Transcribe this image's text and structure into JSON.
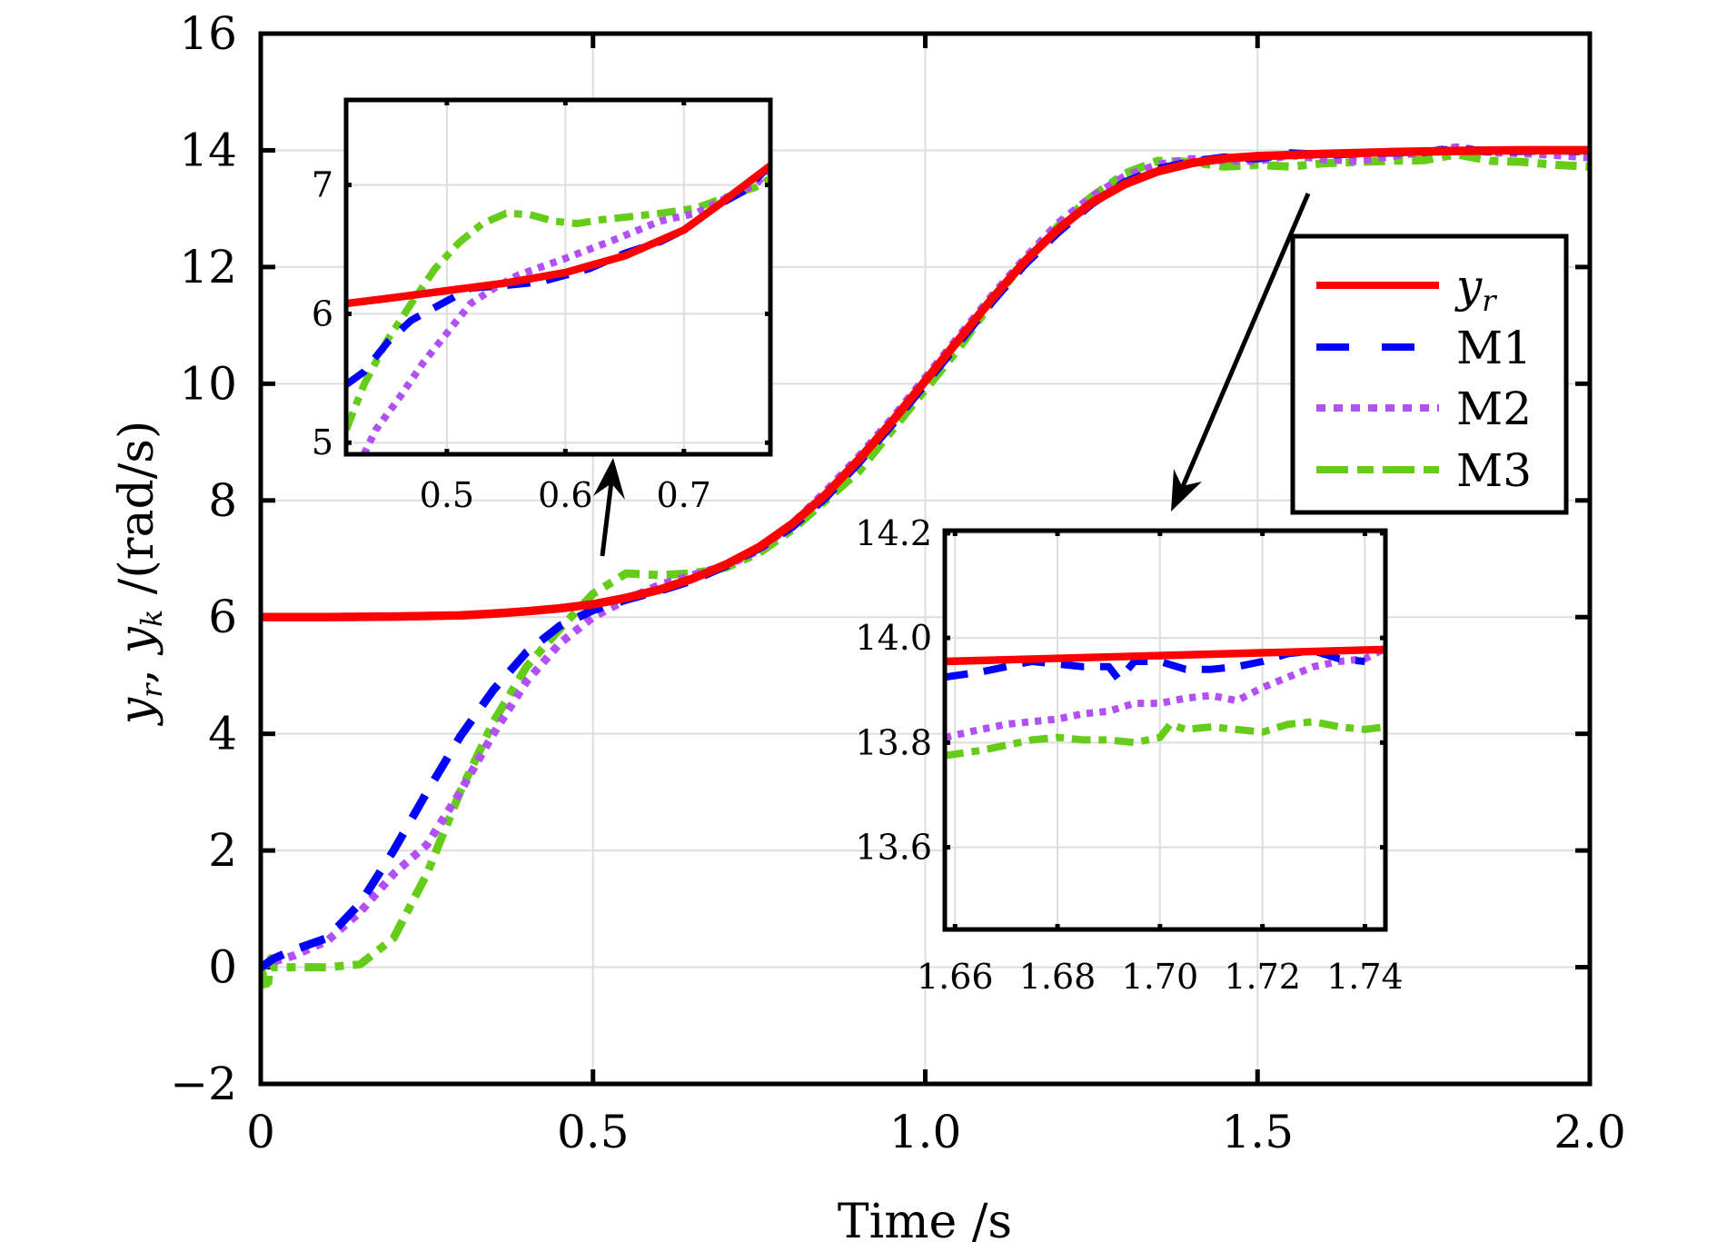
{
  "chart_data": {
    "type": "line",
    "title": "",
    "xlabel": "Time /s",
    "ylabel": "y_r, y_k /(rad/s)",
    "ylabel_parts": [
      "y",
      "r",
      ", ",
      "y",
      "k",
      " /(rad/s)"
    ],
    "xlim": [
      0,
      2.0
    ],
    "ylim": [
      -2,
      16
    ],
    "xticks": [
      0,
      0.5,
      1.0,
      1.5,
      2.0
    ],
    "xtick_labels": [
      "0",
      "0.5",
      "1.0",
      "1.5",
      "2.0"
    ],
    "yticks": [
      -2,
      0,
      2,
      4,
      6,
      8,
      10,
      12,
      14,
      16
    ],
    "ytick_labels": [
      "−2",
      "0",
      "2",
      "4",
      "6",
      "8",
      "10",
      "12",
      "14",
      "16"
    ],
    "grid": true,
    "legend": {
      "placement": "right-center",
      "entries": [
        {
          "label_main": "y",
          "label_sub": "r",
          "series": "yr"
        },
        {
          "label_main": "M1",
          "label_sub": "",
          "series": "M1"
        },
        {
          "label_main": "M2",
          "label_sub": "",
          "series": "M2"
        },
        {
          "label_main": "M3",
          "label_sub": "",
          "series": "M3"
        }
      ]
    },
    "series": [
      {
        "id": "yr",
        "name": "y_r",
        "color": "#ff0000",
        "style": "solid",
        "x": [
          0,
          0.1,
          0.2,
          0.3,
          0.35,
          0.4,
          0.45,
          0.5,
          0.55,
          0.6,
          0.65,
          0.7,
          0.75,
          0.8,
          0.85,
          0.9,
          0.95,
          1.0,
          1.05,
          1.1,
          1.15,
          1.2,
          1.25,
          1.3,
          1.35,
          1.4,
          1.45,
          1.5,
          1.6,
          1.7,
          1.8,
          1.9,
          2.0
        ],
        "values": [
          6.0,
          6.0,
          6.01,
          6.03,
          6.06,
          6.1,
          6.15,
          6.22,
          6.33,
          6.47,
          6.66,
          6.9,
          7.2,
          7.6,
          8.1,
          8.7,
          9.35,
          10.05,
          10.75,
          11.45,
          12.1,
          12.65,
          13.1,
          13.42,
          13.64,
          13.78,
          13.86,
          13.9,
          13.94,
          13.97,
          13.99,
          14.0,
          14.0
        ]
      },
      {
        "id": "M1",
        "name": "M1",
        "color": "#0000ff",
        "style": "dashed",
        "x": [
          0,
          0.02,
          0.05,
          0.1,
          0.15,
          0.2,
          0.25,
          0.3,
          0.35,
          0.4,
          0.45,
          0.5,
          0.55,
          0.6,
          0.65,
          0.7,
          0.75,
          0.8,
          0.85,
          0.9,
          0.95,
          1.0,
          1.05,
          1.1,
          1.15,
          1.2,
          1.25,
          1.3,
          1.35,
          1.4,
          1.45,
          1.5,
          1.55,
          1.6,
          1.65,
          1.7,
          1.75,
          1.8,
          1.85,
          1.9,
          1.95,
          2.0
        ],
        "values": [
          0.0,
          0.15,
          0.3,
          0.5,
          1.1,
          2.0,
          3.0,
          3.95,
          4.75,
          5.4,
          5.85,
          6.12,
          6.3,
          6.45,
          6.63,
          6.88,
          7.18,
          7.55,
          8.05,
          8.65,
          9.3,
          10.0,
          10.7,
          11.4,
          12.05,
          12.6,
          13.08,
          13.45,
          13.68,
          13.8,
          13.88,
          13.86,
          13.95,
          13.92,
          13.95,
          13.96,
          13.97,
          14.02,
          13.98,
          13.99,
          14.0,
          13.98
        ]
      },
      {
        "id": "M2",
        "name": "M2",
        "color": "#b050f5",
        "style": "dotted",
        "x": [
          0,
          0.02,
          0.05,
          0.1,
          0.15,
          0.2,
          0.25,
          0.3,
          0.35,
          0.4,
          0.45,
          0.5,
          0.55,
          0.6,
          0.65,
          0.7,
          0.75,
          0.8,
          0.85,
          0.9,
          0.95,
          1.0,
          1.05,
          1.1,
          1.15,
          1.2,
          1.25,
          1.3,
          1.35,
          1.4,
          1.45,
          1.5,
          1.55,
          1.6,
          1.65,
          1.7,
          1.75,
          1.8,
          1.85,
          1.9,
          1.95,
          2.0
        ],
        "values": [
          0.0,
          0.1,
          0.2,
          0.45,
          0.95,
          1.6,
          2.1,
          3.0,
          4.0,
          4.9,
          5.55,
          6.0,
          6.3,
          6.55,
          6.72,
          6.88,
          7.15,
          7.6,
          8.15,
          8.75,
          9.4,
          10.1,
          10.8,
          11.5,
          12.15,
          12.75,
          13.2,
          13.55,
          13.75,
          13.85,
          13.83,
          13.82,
          13.92,
          13.85,
          13.82,
          13.9,
          13.97,
          14.05,
          13.97,
          13.95,
          13.92,
          13.88
        ]
      },
      {
        "id": "M3",
        "name": "M3",
        "color": "#66cc1a",
        "style": "dashdot",
        "x": [
          0,
          0.01,
          0.015,
          0.02,
          0.05,
          0.1,
          0.15,
          0.2,
          0.25,
          0.3,
          0.35,
          0.4,
          0.45,
          0.5,
          0.55,
          0.6,
          0.65,
          0.7,
          0.75,
          0.8,
          0.85,
          0.9,
          0.95,
          1.0,
          1.05,
          1.1,
          1.15,
          1.2,
          1.25,
          1.3,
          1.35,
          1.4,
          1.45,
          1.5,
          1.55,
          1.6,
          1.65,
          1.7,
          1.75,
          1.8,
          1.85,
          1.9,
          1.95,
          2.0
        ],
        "values": [
          0.0,
          -0.4,
          0.15,
          0.0,
          0.0,
          0.0,
          0.05,
          0.5,
          1.6,
          3.0,
          4.2,
          5.15,
          5.8,
          6.4,
          6.75,
          6.72,
          6.75,
          6.85,
          7.1,
          7.5,
          8.0,
          8.5,
          9.2,
          9.9,
          10.6,
          11.4,
          12.1,
          12.7,
          13.2,
          13.6,
          13.82,
          13.8,
          13.72,
          13.75,
          13.72,
          13.78,
          13.8,
          13.82,
          13.83,
          13.93,
          13.82,
          13.8,
          13.75,
          13.72
        ]
      }
    ],
    "insets": [
      {
        "id": "inset-early",
        "xlim": [
          0.415,
          0.773
        ],
        "ylim": [
          4.91,
          7.66
        ],
        "xticks": [
          0.5,
          0.6,
          0.7
        ],
        "xtick_labels": [
          "0.5",
          "0.6",
          "0.7"
        ],
        "yticks": [
          5,
          6,
          7
        ],
        "ytick_labels": [
          "5",
          "6",
          "7"
        ],
        "series": [
          {
            "id": "yr",
            "x": [
              0.415,
              0.45,
              0.5,
              0.55,
              0.6,
              0.65,
              0.7,
              0.73,
              0.773
            ],
            "values": [
              6.08,
              6.12,
              6.18,
              6.24,
              6.32,
              6.45,
              6.65,
              6.85,
              7.15
            ]
          },
          {
            "id": "M1",
            "x": [
              0.415,
              0.43,
              0.45,
              0.47,
              0.49,
              0.5,
              0.52,
              0.55,
              0.58,
              0.6,
              0.62,
              0.65,
              0.68,
              0.7,
              0.73,
              0.75,
              0.773
            ],
            "values": [
              5.45,
              5.55,
              5.78,
              5.95,
              6.05,
              6.1,
              6.2,
              6.22,
              6.25,
              6.3,
              6.35,
              6.47,
              6.56,
              6.65,
              6.85,
              6.95,
              7.15
            ]
          },
          {
            "id": "M2",
            "x": [
              0.43,
              0.44,
              0.46,
              0.48,
              0.5,
              0.52,
              0.54,
              0.56,
              0.6,
              0.64,
              0.68,
              0.71,
              0.74,
              0.76,
              0.773
            ],
            "values": [
              4.91,
              5.1,
              5.35,
              5.62,
              5.85,
              6.08,
              6.2,
              6.3,
              6.43,
              6.57,
              6.72,
              6.78,
              6.92,
              7.0,
              7.12
            ]
          },
          {
            "id": "M3",
            "x": [
              0.415,
              0.43,
              0.45,
              0.47,
              0.49,
              0.51,
              0.53,
              0.55,
              0.57,
              0.59,
              0.61,
              0.63,
              0.65,
              0.68,
              0.71,
              0.74,
              0.76,
              0.773
            ],
            "values": [
              5.1,
              5.45,
              5.8,
              6.08,
              6.35,
              6.55,
              6.7,
              6.78,
              6.77,
              6.72,
              6.7,
              6.73,
              6.75,
              6.78,
              6.82,
              6.92,
              6.98,
              7.05
            ]
          }
        ]
      },
      {
        "id": "inset-late",
        "xlim": [
          1.658,
          1.744
        ],
        "ylim": [
          13.443,
          14.205
        ],
        "xticks": [
          1.66,
          1.68,
          1.7,
          1.72,
          1.74
        ],
        "xtick_labels": [
          "1.66",
          "1.68",
          "1.70",
          "1.72",
          "1.74"
        ],
        "yticks": [
          13.6,
          13.8,
          14.0,
          14.2
        ],
        "ytick_labels": [
          "13.6",
          "13.8",
          "14.0",
          "14.2"
        ],
        "series": [
          {
            "id": "yr",
            "x": [
              1.658,
              1.744
            ],
            "values": [
              13.955,
              13.978
            ]
          },
          {
            "id": "M1",
            "x": [
              1.658,
              1.665,
              1.67,
              1.675,
              1.68,
              1.685,
              1.69,
              1.692,
              1.695,
              1.7,
              1.705,
              1.71,
              1.715,
              1.72,
              1.725,
              1.73,
              1.735,
              1.74
            ],
            "values": [
              13.925,
              13.935,
              13.945,
              13.955,
              13.95,
              13.945,
              13.945,
              13.92,
              13.955,
              13.955,
              13.94,
              13.94,
              13.945,
              13.955,
              13.97,
              13.975,
              13.96,
              13.955
            ]
          },
          {
            "id": "M2",
            "x": [
              1.658,
              1.665,
              1.67,
              1.675,
              1.68,
              1.685,
              1.69,
              1.695,
              1.7,
              1.705,
              1.71,
              1.715,
              1.72,
              1.725,
              1.73,
              1.735,
              1.74,
              1.744
            ],
            "values": [
              13.81,
              13.825,
              13.835,
              13.84,
              13.845,
              13.855,
              13.86,
              13.875,
              13.875,
              13.885,
              13.89,
              13.88,
              13.905,
              13.925,
              13.945,
              13.955,
              13.96,
              13.98
            ]
          },
          {
            "id": "M3",
            "x": [
              1.658,
              1.665,
              1.67,
              1.675,
              1.68,
              1.685,
              1.69,
              1.695,
              1.7,
              1.702,
              1.705,
              1.71,
              1.715,
              1.72,
              1.725,
              1.73,
              1.735,
              1.74,
              1.744
            ],
            "values": [
              13.775,
              13.785,
              13.795,
              13.805,
              13.81,
              13.805,
              13.805,
              13.8,
              13.81,
              13.835,
              13.825,
              13.83,
              13.825,
              13.82,
              13.835,
              13.84,
              13.83,
              13.825,
              13.83
            ]
          }
        ]
      }
    ]
  }
}
